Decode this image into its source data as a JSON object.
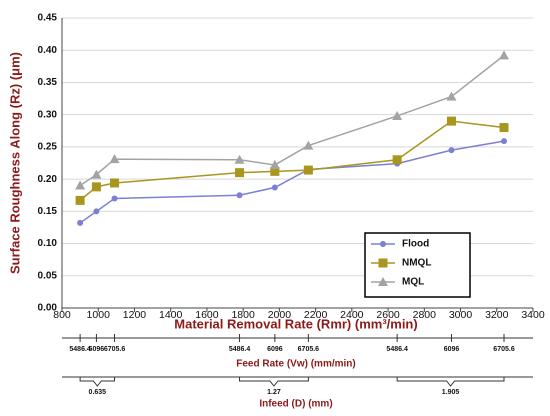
{
  "chart_data": {
    "type": "line",
    "x": [
      900,
      990,
      1090,
      1780,
      1975,
      2160,
      2650,
      2950,
      3240
    ],
    "series": [
      {
        "name": "Flood",
        "color": "#7b80d2",
        "marker": "circle",
        "values": [
          0.132,
          0.15,
          0.17,
          0.175,
          0.187,
          0.215,
          0.224,
          0.245,
          0.259
        ]
      },
      {
        "name": "NMQL",
        "color": "#a8961e",
        "marker": "square",
        "values": [
          0.167,
          0.188,
          0.194,
          0.21,
          0.212,
          0.214,
          0.23,
          0.29,
          0.28
        ]
      },
      {
        "name": "MQL",
        "color": "#a3a3a3",
        "marker": "triangle",
        "values": [
          0.19,
          0.207,
          0.231,
          0.23,
          0.222,
          0.252,
          0.298,
          0.328,
          0.392
        ]
      }
    ],
    "xlim": [
      800,
      3400
    ],
    "xticks": [
      800,
      1000,
      1200,
      1400,
      1600,
      1800,
      2000,
      2200,
      2400,
      2600,
      2800,
      3000,
      3200,
      3400
    ],
    "ylim": [
      0,
      0.45
    ],
    "yticks": [
      {
        "value": 0,
        "label": "0.00"
      },
      0.05,
      {
        "value": 0.1,
        "label": "0.10"
      },
      0.15,
      {
        "value": 0.2,
        "label": "0.20"
      },
      0.25,
      {
        "value": 0.3,
        "label": "0.30"
      },
      0.35,
      {
        "value": 0.4,
        "label": "0.40"
      },
      0.45
    ],
    "xlabel": "Material Removal Rate (Rmr) (mm³/min)",
    "ylabel": "Surface Roughness Along (Rz) (μm)",
    "grid": true,
    "legend": "lower right",
    "feed_rate_label": "Feed Rate (Vw) (mm/min)",
    "feed_rate_ticks": [
      "5486.4",
      "6096",
      "6705.6",
      "5486.4",
      "6096",
      "6705.6",
      "5486.4",
      "6096",
      "6705.6"
    ],
    "infeed_label": "Infeed (D) (mm)",
    "infeed_ticks": [
      "0.635",
      "1.27",
      "1.905"
    ]
  }
}
